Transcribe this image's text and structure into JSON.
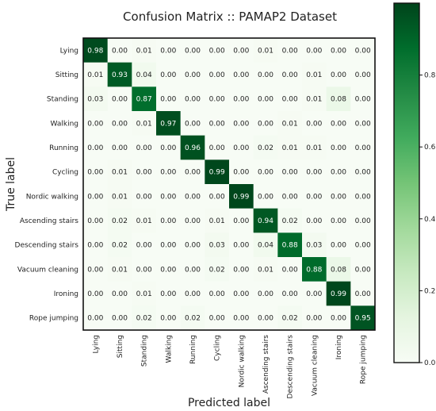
{
  "chart_data": {
    "type": "heatmap",
    "title": "Confusion Matrix :: PAMAP2 Dataset",
    "xlabel": "Predicted label",
    "ylabel": "True label",
    "x_categories": [
      "Lying",
      "Sitting",
      "Standing",
      "Walking",
      "Running",
      "Cycling",
      "Nordic walking",
      "Ascending stairs",
      "Descending stairs",
      "Vacuum cleaning",
      "Ironing",
      "Rope jumping"
    ],
    "y_categories": [
      "Lying",
      "Sitting",
      "Standing",
      "Walking",
      "Running",
      "Cycling",
      "Nordic walking",
      "Ascending stairs",
      "Descending stairs",
      "Vacuum cleaning",
      "Ironing",
      "Rope jumping"
    ],
    "values": [
      [
        0.98,
        0.0,
        0.01,
        0.0,
        0.0,
        0.0,
        0.0,
        0.01,
        0.0,
        0.0,
        0.0,
        0.0
      ],
      [
        0.01,
        0.93,
        0.04,
        0.0,
        0.0,
        0.0,
        0.0,
        0.0,
        0.0,
        0.01,
        0.0,
        0.0
      ],
      [
        0.03,
        0.0,
        0.87,
        0.0,
        0.0,
        0.0,
        0.0,
        0.0,
        0.0,
        0.01,
        0.08,
        0.0
      ],
      [
        0.0,
        0.0,
        0.01,
        0.97,
        0.0,
        0.0,
        0.0,
        0.0,
        0.01,
        0.0,
        0.0,
        0.0
      ],
      [
        0.0,
        0.0,
        0.0,
        0.0,
        0.96,
        0.0,
        0.0,
        0.02,
        0.01,
        0.01,
        0.0,
        0.0
      ],
      [
        0.0,
        0.01,
        0.0,
        0.0,
        0.0,
        0.99,
        0.0,
        0.0,
        0.0,
        0.0,
        0.0,
        0.0
      ],
      [
        0.0,
        0.01,
        0.0,
        0.0,
        0.0,
        0.0,
        0.99,
        0.0,
        0.0,
        0.0,
        0.0,
        0.0
      ],
      [
        0.0,
        0.02,
        0.01,
        0.0,
        0.0,
        0.01,
        0.0,
        0.94,
        0.02,
        0.0,
        0.0,
        0.0
      ],
      [
        0.0,
        0.02,
        0.0,
        0.0,
        0.0,
        0.03,
        0.0,
        0.04,
        0.88,
        0.03,
        0.0,
        0.0
      ],
      [
        0.0,
        0.01,
        0.0,
        0.0,
        0.0,
        0.02,
        0.0,
        0.01,
        0.0,
        0.88,
        0.08,
        0.0
      ],
      [
        0.0,
        0.0,
        0.01,
        0.0,
        0.0,
        0.0,
        0.0,
        0.0,
        0.0,
        0.0,
        0.99,
        0.0
      ],
      [
        0.0,
        0.0,
        0.02,
        0.0,
        0.02,
        0.0,
        0.0,
        0.0,
        0.02,
        0.0,
        0.0,
        0.95
      ]
    ],
    "colorbar": {
      "range": [
        0,
        1
      ],
      "ticks": [
        "0.0",
        "0.2",
        "0.4",
        "0.6",
        "0.8"
      ],
      "tick_values": [
        0,
        0.2,
        0.4,
        0.6,
        0.8
      ]
    },
    "colormap": "Greens",
    "colors": {
      "low": "#f7fcf5",
      "high": "#00441b"
    }
  }
}
